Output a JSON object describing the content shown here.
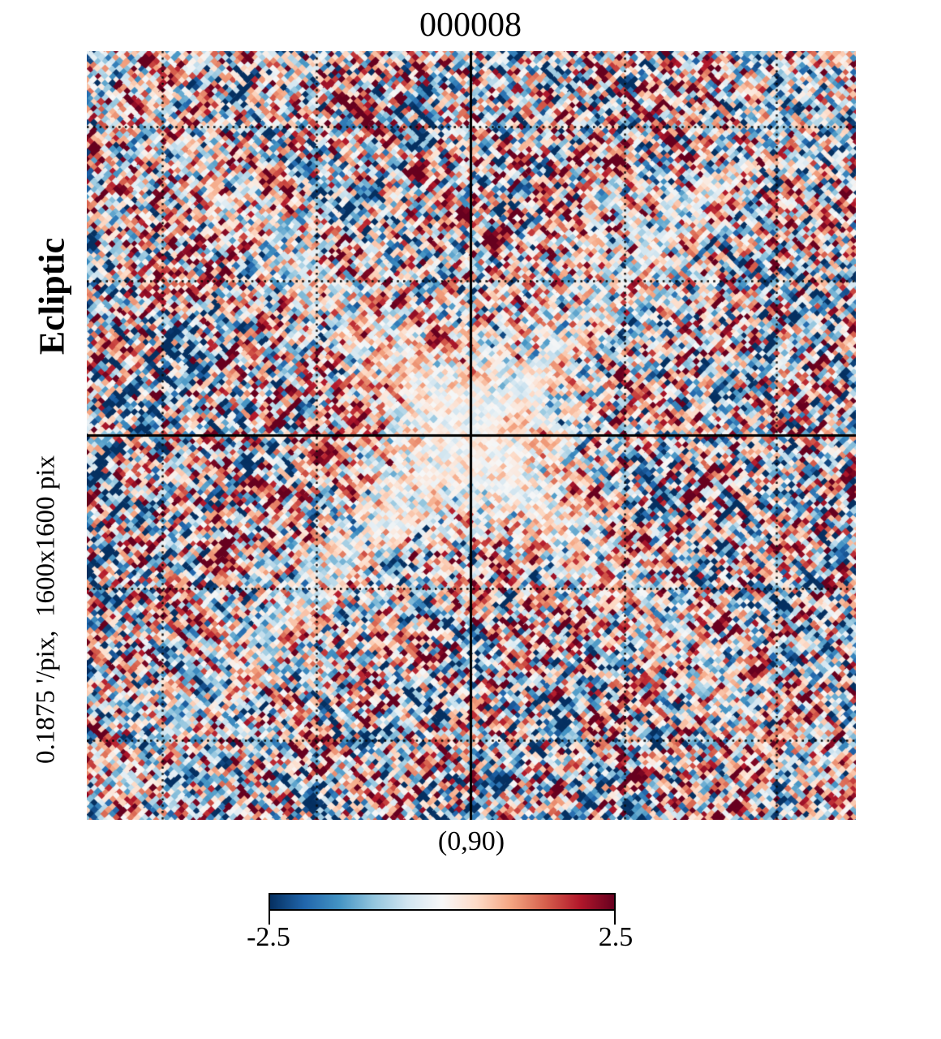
{
  "figure": {
    "title": "000008",
    "ylabel_primary": "Ecliptic",
    "ylabel_secondary": "0.1875 '/pix,  1600x1600 pix",
    "xlabel": "(0,90)"
  },
  "colorbar": {
    "min_label": "-2.5",
    "max_label": "2.5"
  },
  "chart_data": {
    "type": "heatmap",
    "title": "000008",
    "coordinate_frame_label": "Ecliptic",
    "resolution_label": "0.1875 '/pix,  1600x1600 pix",
    "pixel_scale_arcmin_per_pix": 0.1875,
    "map_size_pixels": "1600x1600",
    "center_coordinates_label": "(0,90)",
    "value_range": [
      -2.5,
      2.5
    ],
    "colorbar_ticks": [
      -2.5,
      2.5
    ],
    "colormap": "RdBu_r",
    "colormap_stops": [
      "#053061",
      "#2166ac",
      "#4393c3",
      "#92c5de",
      "#d1e5f0",
      "#f7f7f7",
      "#fddbc7",
      "#f4a582",
      "#d6604d",
      "#b2182b",
      "#67001f"
    ],
    "gridlines": {
      "fractions": [
        0.098,
        0.299,
        0.499,
        0.699,
        0.897
      ],
      "solid_index": 2,
      "dotted_color": "#0a0a0a",
      "solid_color": "#000000"
    },
    "legend_position": "bottom",
    "description": "Square noise map of diamond-shaped pixels in a blue-white-red palette; pale X-shaped diagonal bands and a pale core cross at the map center where solid black crosshair lines intersect; dotted black gridlines at the other grid fractions."
  },
  "render_params": {
    "seed": 987654321,
    "cell_spacing": 9,
    "noise_sigma": 0.8,
    "streak_amp": 1.25,
    "value_gain": 1.95
  }
}
